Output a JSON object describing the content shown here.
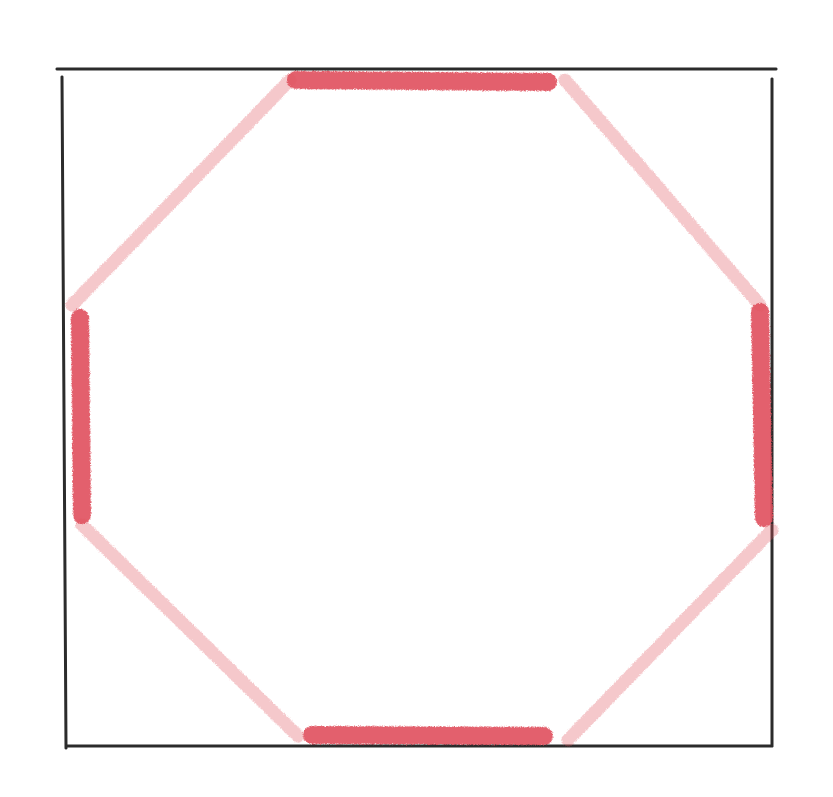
{
  "diagram": {
    "frame_color": "#2b2b2b",
    "octagon_color": "#e0505c",
    "sides": {
      "top": "emphasized",
      "top_right": "faint",
      "right": "emphasized",
      "bottom_right": "faint",
      "bottom": "emphasized",
      "bottom_left": "faint",
      "left": "emphasized",
      "top_left": "faint"
    }
  }
}
